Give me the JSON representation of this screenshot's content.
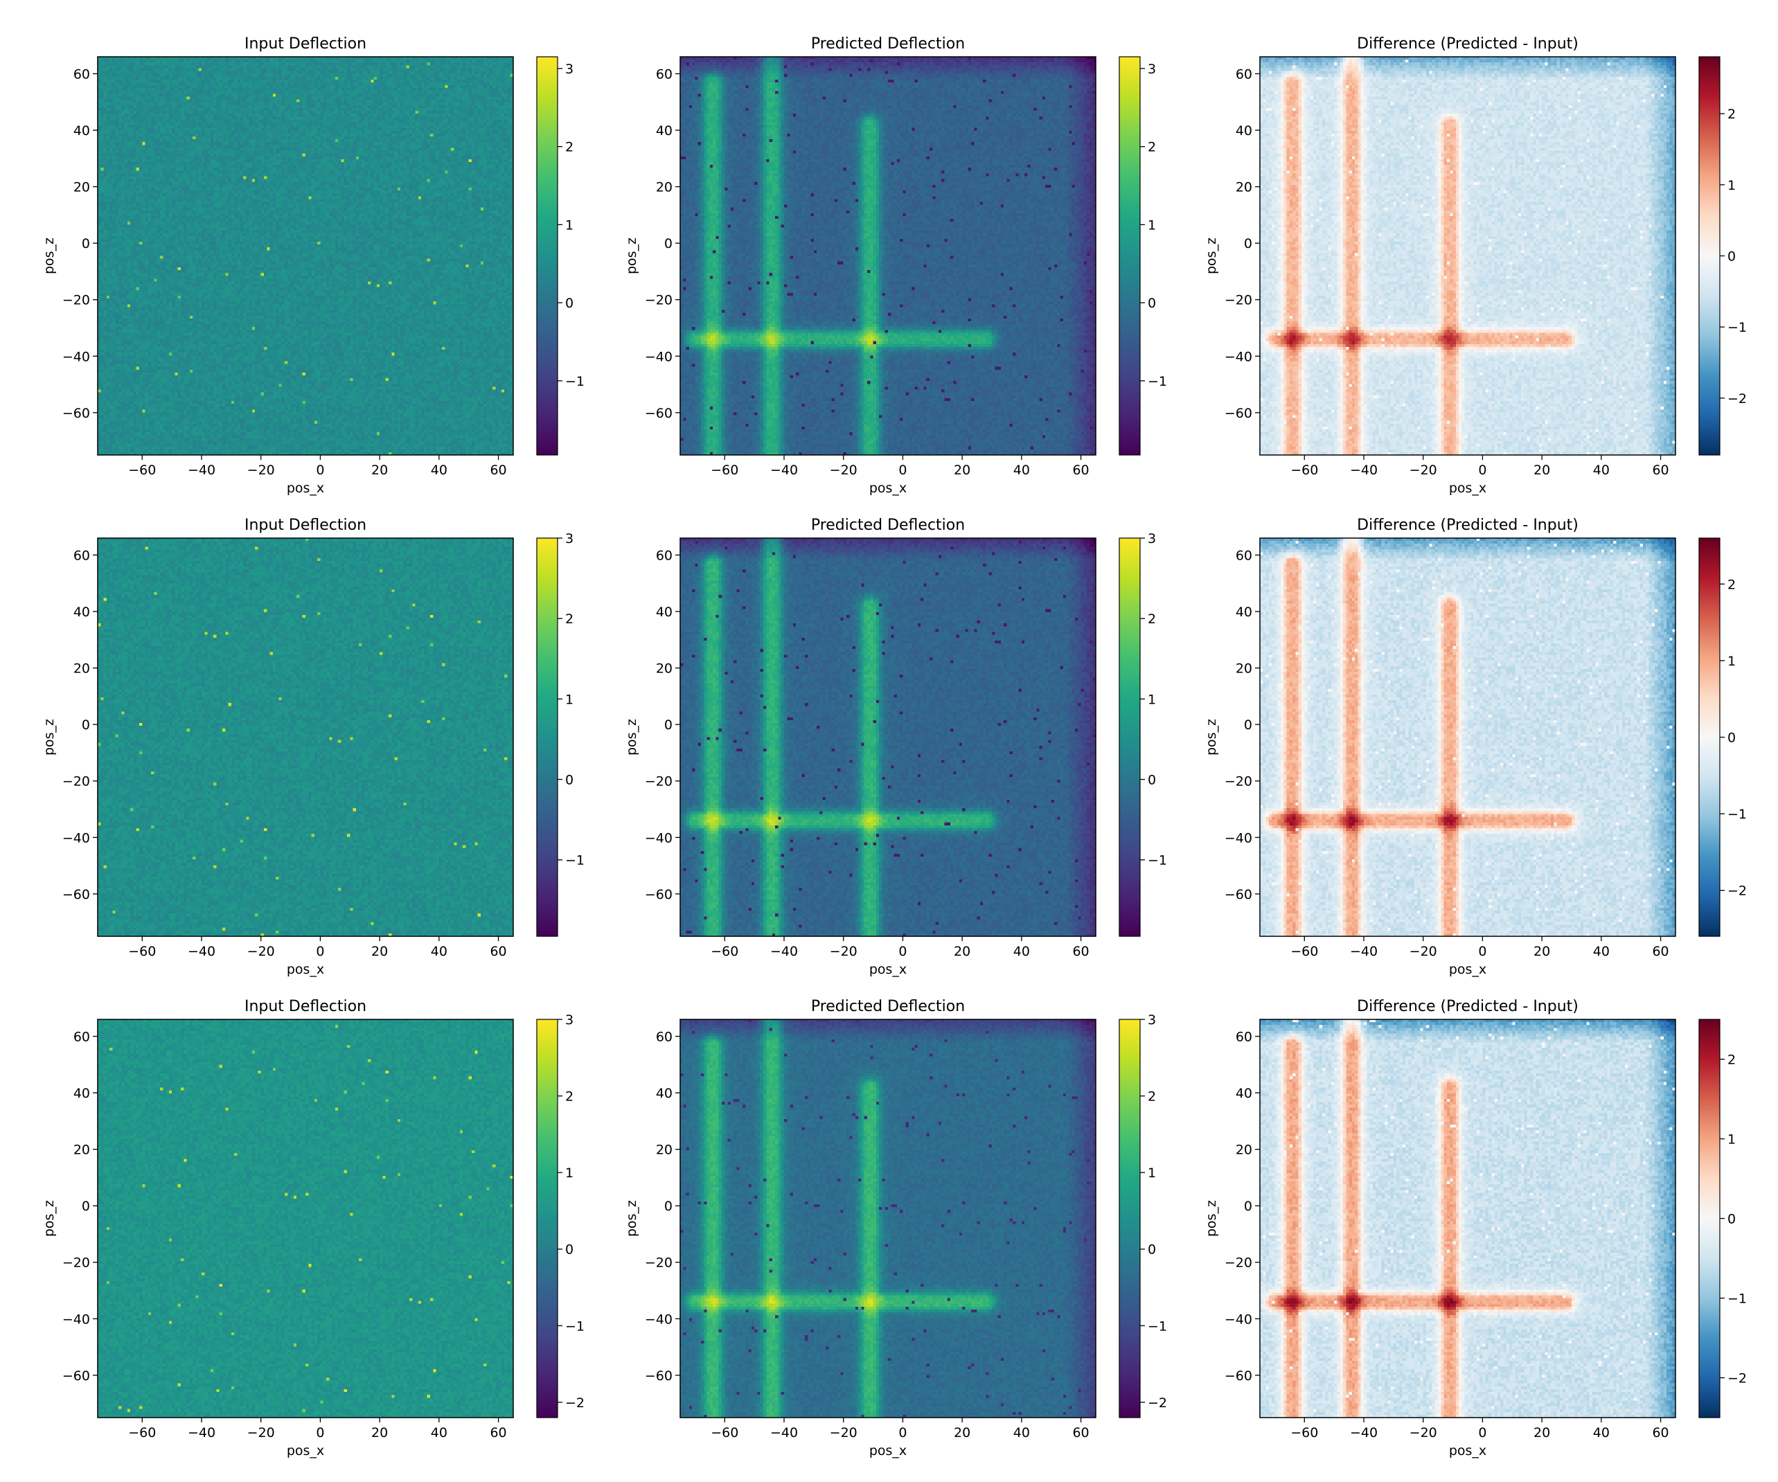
{
  "chart_data": [
    {
      "type": "heatmap",
      "title": "Input Deflection",
      "xlabel": "pos_x",
      "ylabel": "pos_z",
      "xlim": [
        -75,
        65
      ],
      "ylim": [
        -75,
        66
      ],
      "xticks": [
        -60,
        -40,
        -20,
        0,
        20,
        40,
        60
      ],
      "yticks": [
        60,
        40,
        20,
        0,
        -20,
        -40,
        -60
      ],
      "colormap": "viridis",
      "clim": [
        -1.95,
        3.15
      ],
      "colorbar_ticks": [
        3,
        2,
        1,
        0,
        -1
      ],
      "pattern": "noise",
      "pattern_strength": 0
    },
    {
      "type": "heatmap",
      "title": "Predicted Deflection",
      "xlabel": "pos_x",
      "ylabel": "pos_z",
      "xlim": [
        -75,
        65
      ],
      "ylim": [
        -75,
        66
      ],
      "xticks": [
        -60,
        -40,
        -20,
        0,
        20,
        40,
        60
      ],
      "yticks": [
        60,
        40,
        20,
        0,
        -20,
        -40,
        -60
      ],
      "colormap": "viridis",
      "clim": [
        -1.95,
        3.15
      ],
      "colorbar_ticks": [
        3,
        2,
        1,
        0,
        -1
      ],
      "pattern": "grid",
      "pattern_strength": 1
    },
    {
      "type": "heatmap",
      "title": "Difference (Predicted - Input)",
      "xlabel": "pos_x",
      "ylabel": "pos_z",
      "xlim": [
        -75,
        65
      ],
      "ylim": [
        -75,
        66
      ],
      "xticks": [
        -60,
        -40,
        -20,
        0,
        20,
        40,
        60
      ],
      "yticks": [
        60,
        40,
        20,
        0,
        -20,
        -40,
        -60
      ],
      "colormap": "RdBu_r",
      "clim": [
        -2.8,
        2.8
      ],
      "colorbar_ticks": [
        2,
        1,
        0,
        -1,
        -2
      ],
      "pattern": "grid",
      "pattern_strength": 1
    },
    {
      "type": "heatmap",
      "title": "Input Deflection",
      "xlabel": "pos_x",
      "ylabel": "pos_z",
      "xlim": [
        -75,
        65
      ],
      "ylim": [
        -75,
        66
      ],
      "xticks": [
        -60,
        -40,
        -20,
        0,
        20,
        40,
        60
      ],
      "yticks": [
        60,
        40,
        20,
        0,
        -20,
        -40,
        -60
      ],
      "colormap": "viridis",
      "clim": [
        -1.95,
        3.0
      ],
      "colorbar_ticks": [
        3,
        2,
        1,
        0,
        -1
      ],
      "pattern": "noise",
      "pattern_strength": 0
    },
    {
      "type": "heatmap",
      "title": "Predicted Deflection",
      "xlabel": "pos_x",
      "ylabel": "pos_z",
      "xlim": [
        -75,
        65
      ],
      "ylim": [
        -75,
        66
      ],
      "xticks": [
        -60,
        -40,
        -20,
        0,
        20,
        40,
        60
      ],
      "yticks": [
        60,
        40,
        20,
        0,
        -20,
        -40,
        -60
      ],
      "colormap": "viridis",
      "clim": [
        -1.95,
        3.0
      ],
      "colorbar_ticks": [
        3,
        2,
        1,
        0,
        -1
      ],
      "pattern": "grid",
      "pattern_strength": 1
    },
    {
      "type": "heatmap",
      "title": "Difference (Predicted - Input)",
      "xlabel": "pos_x",
      "ylabel": "pos_z",
      "xlim": [
        -75,
        65
      ],
      "ylim": [
        -75,
        66
      ],
      "xticks": [
        -60,
        -40,
        -20,
        0,
        20,
        40,
        60
      ],
      "yticks": [
        60,
        40,
        20,
        0,
        -20,
        -40,
        -60
      ],
      "colormap": "RdBu_r",
      "clim": [
        -2.6,
        2.6
      ],
      "colorbar_ticks": [
        2,
        1,
        0,
        -1,
        -2
      ],
      "pattern": "grid",
      "pattern_strength": 1
    },
    {
      "type": "heatmap",
      "title": "Input Deflection",
      "xlabel": "pos_x",
      "ylabel": "pos_z",
      "xlim": [
        -75,
        65
      ],
      "ylim": [
        -75,
        66
      ],
      "xticks": [
        -60,
        -40,
        -20,
        0,
        20,
        40,
        60
      ],
      "yticks": [
        60,
        40,
        20,
        0,
        -20,
        -40,
        -60
      ],
      "colormap": "viridis",
      "clim": [
        -2.2,
        3.0
      ],
      "colorbar_ticks": [
        3,
        2,
        1,
        0,
        -1,
        -2
      ],
      "pattern": "noise",
      "pattern_strength": 0
    },
    {
      "type": "heatmap",
      "title": "Predicted Deflection",
      "xlabel": "pos_x",
      "ylabel": "pos_z",
      "xlim": [
        -75,
        65
      ],
      "ylim": [
        -75,
        66
      ],
      "xticks": [
        -60,
        -40,
        -20,
        0,
        20,
        40,
        60
      ],
      "yticks": [
        60,
        40,
        20,
        0,
        -20,
        -40,
        -60
      ],
      "colormap": "viridis",
      "clim": [
        -2.2,
        3.0
      ],
      "colorbar_ticks": [
        3,
        2,
        1,
        0,
        -1,
        -2
      ],
      "pattern": "grid",
      "pattern_strength": 1
    },
    {
      "type": "heatmap",
      "title": "Difference (Predicted - Input)",
      "xlabel": "pos_x",
      "ylabel": "pos_z",
      "xlim": [
        -75,
        65
      ],
      "ylim": [
        -75,
        66
      ],
      "xticks": [
        -60,
        -40,
        -20,
        0,
        20,
        40,
        60
      ],
      "yticks": [
        60,
        40,
        20,
        0,
        -20,
        -40,
        -60
      ],
      "colormap": "RdBu_r",
      "clim": [
        -2.5,
        2.5
      ],
      "colorbar_ticks": [
        2,
        1,
        0,
        -1,
        -2
      ],
      "pattern": "grid",
      "pattern_strength": 1
    }
  ]
}
